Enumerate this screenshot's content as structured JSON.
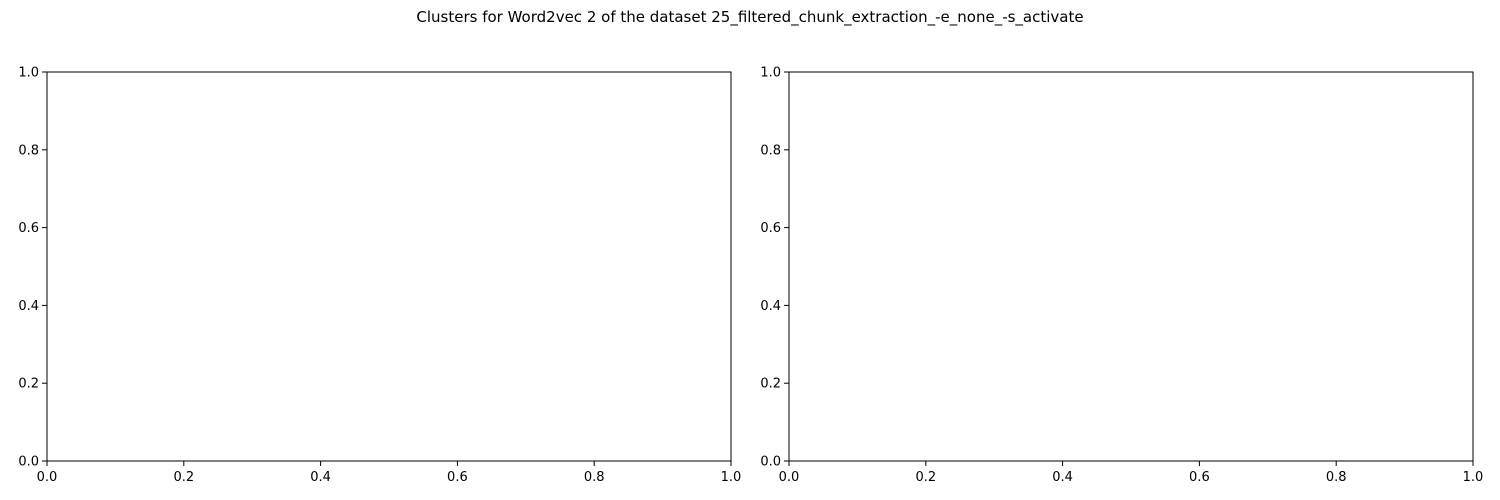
{
  "figure": {
    "suptitle": "Clusters for Word2vec 2 of the dataset 25_filtered_chunk_extraction_-e_none_-s_activate"
  },
  "chart_data": [
    {
      "type": "scatter",
      "title": "",
      "xlabel": "",
      "ylabel": "",
      "xlim": [
        0,
        1
      ],
      "ylim": [
        0,
        1
      ],
      "xticks": [
        0.0,
        0.2,
        0.4,
        0.6,
        0.8,
        1.0
      ],
      "yticks": [
        0.0,
        0.2,
        0.4,
        0.6,
        0.8,
        1.0
      ],
      "xtick_labels": [
        "0.0",
        "0.2",
        "0.4",
        "0.6",
        "0.8",
        "1.0"
      ],
      "ytick_labels": [
        "0.0",
        "0.2",
        "0.4",
        "0.6",
        "0.8",
        "1.0"
      ],
      "grid": false,
      "series": []
    },
    {
      "type": "scatter",
      "title": "",
      "xlabel": "",
      "ylabel": "",
      "xlim": [
        0,
        1
      ],
      "ylim": [
        0,
        1
      ],
      "xticks": [
        0.0,
        0.2,
        0.4,
        0.6,
        0.8,
        1.0
      ],
      "yticks": [
        0.0,
        0.2,
        0.4,
        0.6,
        0.8,
        1.0
      ],
      "xtick_labels": [
        "0.0",
        "0.2",
        "0.4",
        "0.6",
        "0.8",
        "1.0"
      ],
      "ytick_labels": [
        "0.0",
        "0.2",
        "0.4",
        "0.6",
        "0.8",
        "1.0"
      ],
      "grid": false,
      "series": []
    }
  ]
}
